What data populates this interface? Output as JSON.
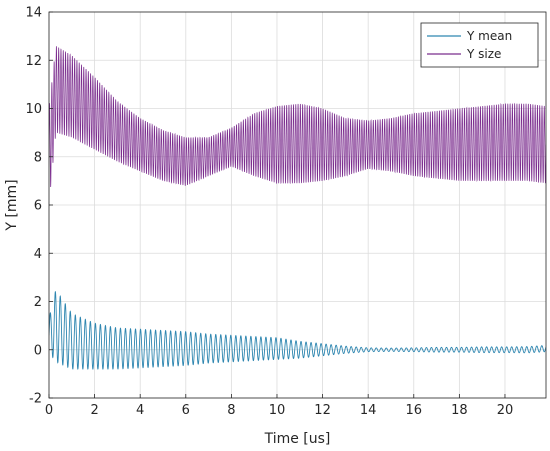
{
  "chart_data": {
    "type": "line",
    "title": "",
    "xlabel": "Time [us]",
    "ylabel": "Y [mm]",
    "xlim": [
      0,
      21.8
    ],
    "ylim": [
      -2,
      14
    ],
    "xticks": [
      0,
      2,
      4,
      6,
      8,
      10,
      12,
      14,
      16,
      18,
      20
    ],
    "yticks": [
      -2,
      0,
      2,
      4,
      6,
      8,
      10,
      12,
      14
    ],
    "grid": true,
    "legend": "top-right",
    "series": [
      {
        "name": "Y mean",
        "color": "#2e86b0",
        "oscillation_period": 0.22,
        "envelope": {
          "x": [
            0,
            0.3,
            1,
            2,
            3,
            4,
            5,
            6,
            7,
            8,
            9,
            10,
            11,
            12,
            13,
            14,
            15,
            16,
            17,
            18,
            19,
            20,
            21,
            21.8
          ],
          "center": [
            0.6,
            1.0,
            0.35,
            0.15,
            0.05,
            0.05,
            0.05,
            0.05,
            0.05,
            0.05,
            0.05,
            0.05,
            0.0,
            0.0,
            0.0,
            0.0,
            0.0,
            0.0,
            0.0,
            0.0,
            0.0,
            0.0,
            0.0,
            0.05
          ],
          "amplitude": [
            0.7,
            1.5,
            1.15,
            0.95,
            0.85,
            0.8,
            0.75,
            0.7,
            0.6,
            0.55,
            0.5,
            0.45,
            0.35,
            0.25,
            0.15,
            0.08,
            0.07,
            0.08,
            0.1,
            0.1,
            0.12,
            0.12,
            0.13,
            0.13
          ]
        }
      },
      {
        "name": "Y size",
        "color": "#7b2d8e",
        "oscillation_period": 0.1,
        "envelope": {
          "x": [
            0,
            0.3,
            1,
            2,
            3,
            4,
            5,
            6,
            7,
            8,
            9,
            10,
            11,
            12,
            13,
            14,
            15,
            16,
            17,
            18,
            19,
            20,
            21,
            21.8
          ],
          "min": [
            6.0,
            9.0,
            8.8,
            8.3,
            7.8,
            7.4,
            7.0,
            6.8,
            7.2,
            7.6,
            7.2,
            6.9,
            6.9,
            7.0,
            7.2,
            7.5,
            7.4,
            7.2,
            7.1,
            7.0,
            7.0,
            7.0,
            7.0,
            6.9
          ],
          "max": [
            10.0,
            12.6,
            12.2,
            11.3,
            10.3,
            9.6,
            9.1,
            8.8,
            8.8,
            9.2,
            9.8,
            10.1,
            10.2,
            10.0,
            9.6,
            9.5,
            9.6,
            9.8,
            9.9,
            10.0,
            10.1,
            10.2,
            10.2,
            10.1
          ]
        }
      }
    ]
  }
}
